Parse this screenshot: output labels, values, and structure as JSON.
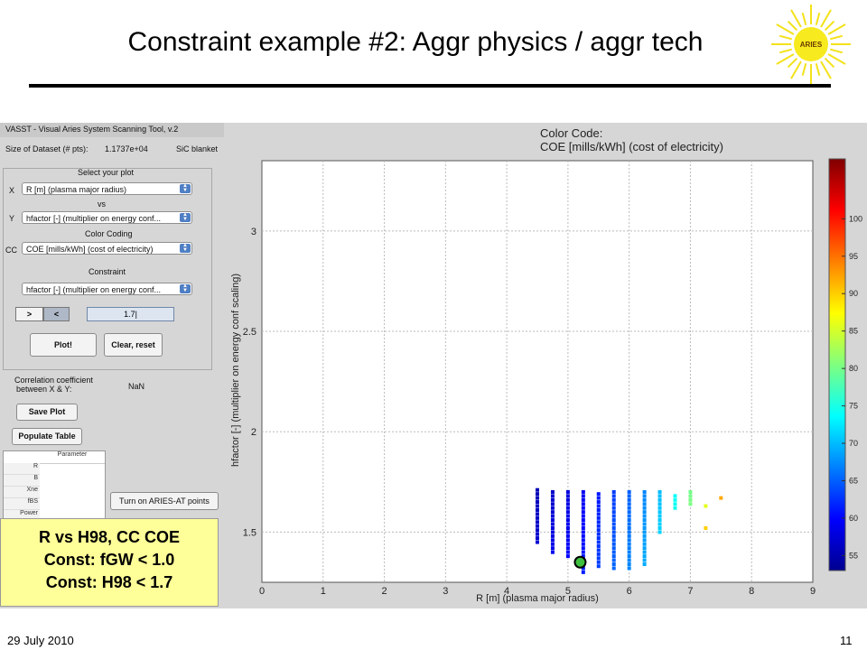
{
  "slide": {
    "title": "Constraint example #2: Aggr physics / aggr tech",
    "logo_text": "ARIES",
    "footer_date": "29 July 2010",
    "page_number": "11"
  },
  "panel": {
    "window_title": "VASST - Visual Aries System Scanning Tool, v.2",
    "dataset_label": "Size of Dataset (# pts):",
    "dataset_value": "1.1737e+04",
    "blanket": "SiC blanket",
    "select_plot_label": "Select your plot",
    "x_label": "X",
    "x_value": "R [m] (plasma major radius)",
    "vs_label": "vs",
    "y_label": "Y",
    "y_value": "hfactor [-] (multiplier on energy conf...",
    "color_coding_label": "Color Coding",
    "cc_label": "CC",
    "cc_value": "COE [mills/kWh] (cost of electricity)",
    "constraint_label": "Constraint",
    "constraint_value": "hfactor [-] (multiplier on energy conf...",
    "gt_label": ">",
    "lt_label": "<",
    "constraint_input": "1.7|",
    "plot_button": "Plot!",
    "clear_button": "Clear, reset",
    "corr_label_1": "Correlation coefficient",
    "corr_label_2": "between X & Y:",
    "corr_value": "NaN",
    "save_button": "Save Plot",
    "populate_button": "Populate Table",
    "table_header": "Parameter",
    "table_rows": [
      "R",
      "B",
      "Xne",
      "fBS",
      "Power"
    ],
    "aries_button": "Turn on ARIES-AT points"
  },
  "overlay": {
    "line1": "R vs H98, CC COE",
    "line2": "Const: fGW < 1.0",
    "line3": "Const: H98 < 1.7"
  },
  "chart_data": {
    "type": "scatter",
    "title": "Color Code:",
    "subtitle": "COE [mills/kWh] (cost of electricity)",
    "xlabel": "R [m] (plasma major radius)",
    "ylabel": "hfactor [-] (multiplier on energy conf scaling)",
    "xlim": [
      0,
      9
    ],
    "ylim": [
      1.25,
      3.35
    ],
    "x_ticks": [
      0,
      1,
      2,
      3,
      4,
      5,
      6,
      7,
      8,
      9
    ],
    "y_ticks": [
      1.5,
      2,
      2.5,
      3
    ],
    "grid": true,
    "colorbar": {
      "range": [
        53,
        108
      ],
      "ticks": [
        55,
        60,
        65,
        70,
        75,
        80,
        85,
        90,
        95,
        100
      ]
    },
    "columns": [
      {
        "x": 4.5,
        "ymin": 1.45,
        "ymax": 1.7,
        "coe": 56
      },
      {
        "x": 4.75,
        "ymin": 1.4,
        "ymax": 1.7,
        "coe": 57
      },
      {
        "x": 5.0,
        "ymin": 1.38,
        "ymax": 1.7,
        "coe": 58
      },
      {
        "x": 5.25,
        "ymin": 1.3,
        "ymax": 1.7,
        "coe": 59
      },
      {
        "x": 5.5,
        "ymin": 1.33,
        "ymax": 1.7,
        "coe": 61
      },
      {
        "x": 5.75,
        "ymin": 1.32,
        "ymax": 1.7,
        "coe": 63
      },
      {
        "x": 6.0,
        "ymin": 1.32,
        "ymax": 1.7,
        "coe": 65
      },
      {
        "x": 6.25,
        "ymin": 1.34,
        "ymax": 1.7,
        "coe": 67
      },
      {
        "x": 6.5,
        "ymin": 1.5,
        "ymax": 1.7,
        "coe": 70
      },
      {
        "x": 6.75,
        "ymin": 1.62,
        "ymax": 1.69,
        "coe": 74
      },
      {
        "x": 7.0,
        "ymin": 1.64,
        "ymax": 1.69,
        "coe": 80
      }
    ],
    "isolated_points": [
      {
        "x": 7.25,
        "y": 1.63,
        "coe": 86
      },
      {
        "x": 7.25,
        "y": 1.52,
        "coe": 90
      },
      {
        "x": 7.5,
        "y": 1.67,
        "coe": 92
      }
    ],
    "highlight_point": {
      "x": 5.2,
      "y": 1.35
    }
  }
}
